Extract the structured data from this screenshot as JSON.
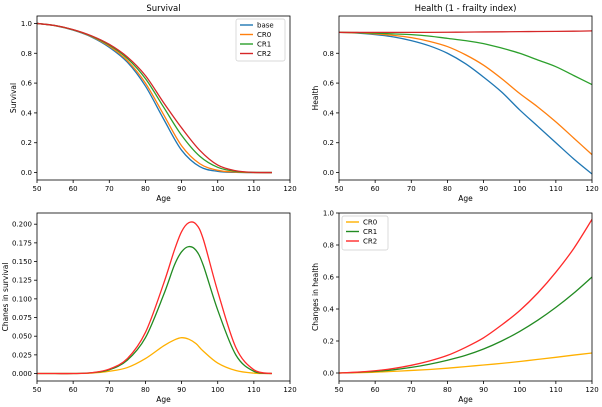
{
  "chart_data": [
    {
      "type": "line",
      "title": "Survival",
      "xlabel": "Age",
      "ylabel": "Survival",
      "xlim": [
        50,
        120
      ],
      "ylim": [
        -0.05,
        1.05
      ],
      "xticks": [
        50,
        60,
        70,
        80,
        90,
        100,
        110,
        120
      ],
      "yticks": [
        0.0,
        0.2,
        0.4,
        0.6,
        0.8,
        1.0
      ],
      "ytick_labels": [
        "0.0",
        "0.2",
        "0.4",
        "0.6",
        "0.8",
        "1.0"
      ],
      "legend_position": "top-right",
      "x": [
        50,
        55,
        60,
        65,
        70,
        75,
        80,
        85,
        90,
        95,
        100,
        105,
        110,
        115
      ],
      "series": [
        {
          "name": "base",
          "color": "#1f77b4",
          "values": [
            1.0,
            0.985,
            0.955,
            0.91,
            0.84,
            0.74,
            0.58,
            0.36,
            0.15,
            0.04,
            0.008,
            0.001,
            0.0,
            0.0
          ]
        },
        {
          "name": "CR0",
          "color": "#ff7f0e",
          "values": [
            1.0,
            0.985,
            0.957,
            0.913,
            0.847,
            0.75,
            0.6,
            0.39,
            0.18,
            0.06,
            0.015,
            0.003,
            0.0,
            0.0
          ]
        },
        {
          "name": "CR1",
          "color": "#2ca02c",
          "values": [
            1.0,
            0.986,
            0.958,
            0.916,
            0.855,
            0.765,
            0.63,
            0.44,
            0.25,
            0.11,
            0.035,
            0.008,
            0.001,
            0.0
          ]
        },
        {
          "name": "CR2",
          "color": "#d62728",
          "values": [
            1.0,
            0.986,
            0.959,
            0.918,
            0.86,
            0.775,
            0.65,
            0.47,
            0.3,
            0.15,
            0.05,
            0.012,
            0.001,
            0.0
          ]
        }
      ]
    },
    {
      "type": "line",
      "title": "Health (1 - frailty index)",
      "xlabel": "Age",
      "ylabel": "Health",
      "xlim": [
        50,
        120
      ],
      "ylim": [
        -0.05,
        1.05
      ],
      "xticks": [
        50,
        60,
        70,
        80,
        90,
        100,
        110,
        120
      ],
      "yticks": [
        0.0,
        0.2,
        0.4,
        0.6,
        0.8
      ],
      "ytick_labels": [
        "0.0",
        "0.2",
        "0.4",
        "0.6",
        "0.8"
      ],
      "legend_position": "none",
      "x": [
        50,
        55,
        60,
        65,
        70,
        75,
        80,
        85,
        90,
        95,
        100,
        105,
        110,
        115,
        120
      ],
      "series": [
        {
          "name": "base",
          "color": "#1f77b4",
          "values": [
            0.94,
            0.935,
            0.925,
            0.91,
            0.885,
            0.85,
            0.8,
            0.73,
            0.64,
            0.54,
            0.42,
            0.31,
            0.2,
            0.09,
            -0.01
          ]
        },
        {
          "name": "CR0",
          "color": "#ff7f0e",
          "values": [
            0.94,
            0.937,
            0.93,
            0.92,
            0.905,
            0.88,
            0.845,
            0.79,
            0.72,
            0.63,
            0.53,
            0.44,
            0.34,
            0.23,
            0.12
          ]
        },
        {
          "name": "CR1",
          "color": "#2ca02c",
          "values": [
            0.94,
            0.939,
            0.935,
            0.93,
            0.925,
            0.915,
            0.9,
            0.885,
            0.865,
            0.835,
            0.8,
            0.755,
            0.71,
            0.65,
            0.59
          ]
        },
        {
          "name": "CR2",
          "color": "#d62728",
          "values": [
            0.94,
            0.94,
            0.94,
            0.94,
            0.94,
            0.94,
            0.941,
            0.942,
            0.943,
            0.944,
            0.945,
            0.946,
            0.947,
            0.948,
            0.95
          ]
        }
      ]
    },
    {
      "type": "line",
      "title": "",
      "xlabel": "Age",
      "ylabel": "Chanes in survival",
      "xlim": [
        50,
        120
      ],
      "ylim": [
        -0.01,
        0.215
      ],
      "xticks": [
        50,
        60,
        70,
        80,
        90,
        100,
        110,
        120
      ],
      "yticks": [
        0.0,
        0.025,
        0.05,
        0.075,
        0.1,
        0.125,
        0.15,
        0.175,
        0.2
      ],
      "ytick_labels": [
        "0.000",
        "0.025",
        "0.050",
        "0.075",
        "0.100",
        "0.125",
        "0.150",
        "0.175",
        "0.200"
      ],
      "legend_position": "none",
      "x": [
        50,
        55,
        60,
        65,
        70,
        75,
        80,
        85,
        88,
        90,
        92,
        94,
        96,
        100,
        105,
        110,
        115
      ],
      "series": [
        {
          "name": "CR0",
          "color": "#ffb000",
          "values": [
            0.0,
            0.0,
            0.0,
            0.0005,
            0.003,
            0.008,
            0.02,
            0.037,
            0.045,
            0.048,
            0.046,
            0.04,
            0.03,
            0.014,
            0.004,
            0.0005,
            0.0
          ]
        },
        {
          "name": "CR1",
          "color": "#228b22",
          "values": [
            0.0,
            0.0,
            0.0,
            0.001,
            0.005,
            0.018,
            0.048,
            0.105,
            0.145,
            0.163,
            0.17,
            0.165,
            0.145,
            0.085,
            0.025,
            0.003,
            0.0
          ]
        },
        {
          "name": "CR2",
          "color": "#ff2a2a",
          "values": [
            0.0,
            0.0,
            0.0,
            0.001,
            0.006,
            0.02,
            0.055,
            0.12,
            0.165,
            0.19,
            0.202,
            0.2,
            0.18,
            0.11,
            0.035,
            0.005,
            0.0
          ]
        }
      ]
    },
    {
      "type": "line",
      "title": "",
      "xlabel": "Age",
      "ylabel": "Changes in health",
      "xlim": [
        50,
        120
      ],
      "ylim": [
        -0.05,
        1.0
      ],
      "xticks": [
        50,
        60,
        70,
        80,
        90,
        100,
        110,
        120
      ],
      "yticks": [
        0.0,
        0.2,
        0.4,
        0.6,
        0.8,
        1.0
      ],
      "ytick_labels": [
        "0.0",
        "0.2",
        "0.4",
        "0.6",
        "0.8",
        "1.0"
      ],
      "legend_position": "top-left",
      "x": [
        50,
        55,
        60,
        65,
        70,
        75,
        80,
        85,
        90,
        95,
        100,
        105,
        110,
        115,
        120
      ],
      "series": [
        {
          "name": "CR0",
          "color": "#ffb000",
          "values": [
            0.0,
            0.002,
            0.005,
            0.01,
            0.016,
            0.022,
            0.03,
            0.04,
            0.05,
            0.06,
            0.072,
            0.085,
            0.098,
            0.112,
            0.125
          ]
        },
        {
          "name": "CR1",
          "color": "#228b22",
          "values": [
            0.0,
            0.004,
            0.01,
            0.02,
            0.035,
            0.055,
            0.08,
            0.11,
            0.15,
            0.2,
            0.26,
            0.33,
            0.41,
            0.5,
            0.6
          ]
        },
        {
          "name": "CR2",
          "color": "#ff2a2a",
          "values": [
            0.0,
            0.005,
            0.014,
            0.028,
            0.048,
            0.075,
            0.11,
            0.16,
            0.22,
            0.3,
            0.39,
            0.5,
            0.63,
            0.78,
            0.96
          ]
        }
      ]
    }
  ]
}
